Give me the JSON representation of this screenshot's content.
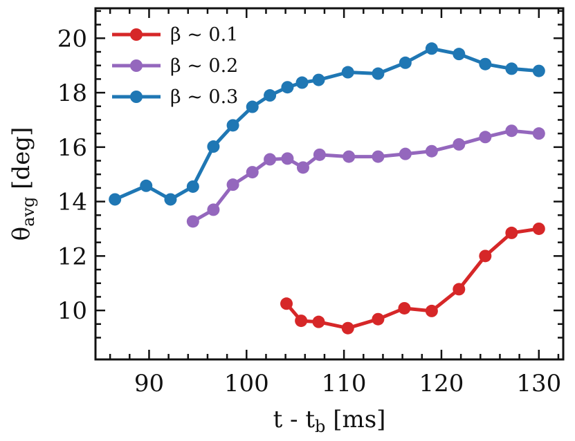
{
  "chart_data": {
    "type": "line",
    "title": "",
    "xlabel": "t - t_b [ms]",
    "xlabel_main": "t - t",
    "xlabel_sub": "b",
    "xlabel_unit": " [ms]",
    "ylabel": "θ_avg [deg]",
    "ylabel_main": "θ",
    "ylabel_sub": "avg",
    "ylabel_unit": " [deg]",
    "xlim": [
      84.5,
      132.5
    ],
    "ylim": [
      8.2,
      21.1
    ],
    "xticks": [
      90,
      100,
      110,
      120,
      130
    ],
    "yticks": [
      10,
      12,
      14,
      16,
      18,
      20
    ],
    "grid": false,
    "legend_position": "top-left",
    "series": [
      {
        "name": "β ~ 0.1",
        "color": "#d62728",
        "x": [
          104.1,
          105.6,
          107.4,
          110.4,
          113.5,
          116.2,
          119.0,
          121.8,
          124.5,
          127.2,
          130.0
        ],
        "y": [
          10.25,
          9.62,
          9.58,
          9.35,
          9.68,
          10.08,
          9.98,
          10.78,
          12.0,
          12.85,
          13.0
        ]
      },
      {
        "name": "β ~ 0.2",
        "color": "#9467bd",
        "x": [
          94.5,
          96.6,
          98.6,
          100.6,
          102.4,
          104.2,
          105.8,
          107.5,
          110.5,
          113.5,
          116.3,
          119.0,
          121.8,
          124.5,
          127.2,
          130.0
        ],
        "y": [
          13.27,
          13.7,
          14.62,
          15.08,
          15.55,
          15.58,
          15.25,
          15.72,
          15.65,
          15.65,
          15.75,
          15.85,
          16.1,
          16.37,
          16.6,
          16.5
        ]
      },
      {
        "name": "β ~ 0.3",
        "color": "#1f77b4",
        "x": [
          86.5,
          89.7,
          92.2,
          94.5,
          96.6,
          98.6,
          100.6,
          102.4,
          104.2,
          105.7,
          107.4,
          110.4,
          113.5,
          116.3,
          119.0,
          121.8,
          124.5,
          127.2,
          130.0
        ],
        "y": [
          14.08,
          14.58,
          14.08,
          14.55,
          16.02,
          16.8,
          17.48,
          17.9,
          18.2,
          18.37,
          18.47,
          18.75,
          18.7,
          19.1,
          19.62,
          19.42,
          19.05,
          18.88,
          18.8
        ]
      }
    ]
  }
}
